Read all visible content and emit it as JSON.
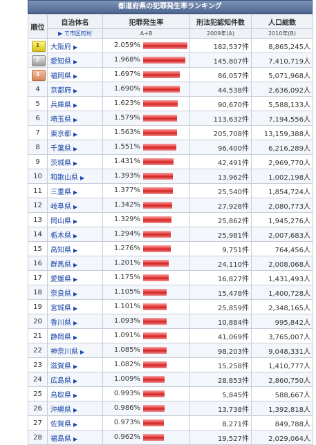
{
  "title": "都道府県の犯罪発生率ランキング",
  "headers": {
    "rank": "順位",
    "name": "自治体名",
    "name_sub": "▶ で市区町村",
    "rate": "犯罪発生率",
    "rate_sub": "A÷B",
    "count": "刑法犯認知件数",
    "count_sub": "2009年(A)",
    "pop": "人口総数",
    "pop_sub": "2010年(B)"
  },
  "arrow_icon": "▶",
  "rows": [
    {
      "rank": "1",
      "name": "大阪府",
      "rate": "2.059%",
      "rate_value": 2.059,
      "count": "182,537件",
      "pop": "8,865,245人"
    },
    {
      "rank": "2",
      "name": "愛知県",
      "rate": "1.968%",
      "rate_value": 1.968,
      "count": "145,807件",
      "pop": "7,410,719人"
    },
    {
      "rank": "3",
      "name": "福岡県",
      "rate": "1.697%",
      "rate_value": 1.697,
      "count": "86,057件",
      "pop": "5,071,968人"
    },
    {
      "rank": "4",
      "name": "京都府",
      "rate": "1.690%",
      "rate_value": 1.69,
      "count": "44,538件",
      "pop": "2,636,092人"
    },
    {
      "rank": "5",
      "name": "兵庫県",
      "rate": "1.623%",
      "rate_value": 1.623,
      "count": "90,670件",
      "pop": "5,588,133人"
    },
    {
      "rank": "6",
      "name": "埼玉県",
      "rate": "1.579%",
      "rate_value": 1.579,
      "count": "113,632件",
      "pop": "7,194,556人"
    },
    {
      "rank": "7",
      "name": "東京都",
      "rate": "1.563%",
      "rate_value": 1.563,
      "count": "205,708件",
      "pop": "13,159,388人"
    },
    {
      "rank": "8",
      "name": "千葉県",
      "rate": "1.551%",
      "rate_value": 1.551,
      "count": "96,400件",
      "pop": "6,216,289人"
    },
    {
      "rank": "9",
      "name": "茨城県",
      "rate": "1.431%",
      "rate_value": 1.431,
      "count": "42,491件",
      "pop": "2,969,770人"
    },
    {
      "rank": "10",
      "name": "和歌山県",
      "rate": "1.393%",
      "rate_value": 1.393,
      "count": "13,962件",
      "pop": "1,002,198人"
    },
    {
      "rank": "11",
      "name": "三重県",
      "rate": "1.377%",
      "rate_value": 1.377,
      "count": "25,540件",
      "pop": "1,854,724人"
    },
    {
      "rank": "12",
      "name": "岐阜県",
      "rate": "1.342%",
      "rate_value": 1.342,
      "count": "27,928件",
      "pop": "2,080,773人"
    },
    {
      "rank": "13",
      "name": "岡山県",
      "rate": "1.329%",
      "rate_value": 1.329,
      "count": "25,862件",
      "pop": "1,945,276人"
    },
    {
      "rank": "14",
      "name": "栃木県",
      "rate": "1.294%",
      "rate_value": 1.294,
      "count": "25,981件",
      "pop": "2,007,683人"
    },
    {
      "rank": "15",
      "name": "高知県",
      "rate": "1.276%",
      "rate_value": 1.276,
      "count": "9,751件",
      "pop": "764,456人"
    },
    {
      "rank": "16",
      "name": "群馬県",
      "rate": "1.201%",
      "rate_value": 1.201,
      "count": "24,110件",
      "pop": "2,008,068人"
    },
    {
      "rank": "17",
      "name": "愛媛県",
      "rate": "1.175%",
      "rate_value": 1.175,
      "count": "16,827件",
      "pop": "1,431,493人"
    },
    {
      "rank": "18",
      "name": "奈良県",
      "rate": "1.105%",
      "rate_value": 1.105,
      "count": "15,478件",
      "pop": "1,400,728人"
    },
    {
      "rank": "19",
      "name": "宮城県",
      "rate": "1.101%",
      "rate_value": 1.101,
      "count": "25,859件",
      "pop": "2,348,165人"
    },
    {
      "rank": "20",
      "name": "香川県",
      "rate": "1.093%",
      "rate_value": 1.093,
      "count": "10,884件",
      "pop": "995,842人"
    },
    {
      "rank": "21",
      "name": "静岡県",
      "rate": "1.091%",
      "rate_value": 1.091,
      "count": "41,069件",
      "pop": "3,765,007人"
    },
    {
      "rank": "22",
      "name": "神奈川県",
      "rate": "1.085%",
      "rate_value": 1.085,
      "count": "98,203件",
      "pop": "9,048,331人"
    },
    {
      "rank": "23",
      "name": "滋賀県",
      "rate": "1.082%",
      "rate_value": 1.082,
      "count": "15,258件",
      "pop": "1,410,777人"
    },
    {
      "rank": "24",
      "name": "広島県",
      "rate": "1.009%",
      "rate_value": 1.009,
      "count": "28,853件",
      "pop": "2,860,750人"
    },
    {
      "rank": "25",
      "name": "鳥取県",
      "rate": "0.993%",
      "rate_value": 0.993,
      "count": "5,845件",
      "pop": "588,667人"
    },
    {
      "rank": "26",
      "name": "沖縄県",
      "rate": "0.986%",
      "rate_value": 0.986,
      "count": "13,738件",
      "pop": "1,392,818人"
    },
    {
      "rank": "27",
      "name": "佐賀県",
      "rate": "0.973%",
      "rate_value": 0.973,
      "count": "8,271件",
      "pop": "849,788人"
    },
    {
      "rank": "28",
      "name": "福島県",
      "rate": "0.962%",
      "rate_value": 0.962,
      "count": "19,527件",
      "pop": "2,029,064人"
    }
  ]
}
